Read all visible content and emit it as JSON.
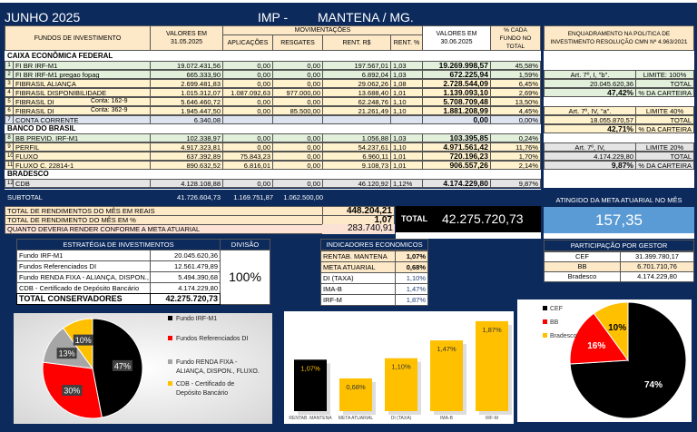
{
  "header": {
    "month": "JUNHO 2025",
    "imp": "IMP -",
    "city": "MANTENA / MG."
  },
  "columns": {
    "funds": "FUNDOS DE INVESTIMENTO",
    "val_prev": "VALORES EM 31.05.2025",
    "movements": "MOVIMENTAÇÕES",
    "applications": "APLICAÇÕES",
    "redemptions": "RESGATES",
    "rent_rs": "RENT. R$",
    "rent_pct": "RENT. %",
    "val_curr": "VALORES EM 30.06.2025",
    "pct_total": "% CADA FUNDO NO TOTAL",
    "policy": "ENQUADRAMENTO NA POLITICA DE INVESTIMENTO RESOLUÇÃO CMN Nº 4.963/2021"
  },
  "sections": {
    "cef": "CAIXA ECONÔMICA FEDERAL",
    "bb": "BANCO DO BRASIL",
    "bradesco": "BRADESCO"
  },
  "rows": [
    {
      "n": "1",
      "name": "FI BR IRF-M1",
      "conta": "",
      "prev": "19.072.431,56",
      "apl": "0,00",
      "res": "0,00",
      "rrs": "197.567,01",
      "rp": "1,03",
      "curr": "19.269.998,57",
      "pct": "45,58%"
    },
    {
      "n": "2",
      "name": "FI BR IRF-M1 pregao fopag",
      "conta": "",
      "prev": "665.333,90",
      "apl": "0,00",
      "res": "0,00",
      "rrs": "6.892,04",
      "rp": "1,03",
      "curr": "672.225,94",
      "pct": "1,59%"
    },
    {
      "n": "3",
      "name": "FIBRASIL ALIANÇA",
      "conta": "",
      "prev": "2.699.481,83",
      "apl": "0,00",
      "res": "0,00",
      "rrs": "29.062,26",
      "rp": "1,08",
      "curr": "2.728.544,09",
      "pct": "6,45%"
    },
    {
      "n": "4",
      "name": "FIBRASIL DISPONIBILIDADE",
      "conta": "",
      "prev": "1.015.312,07",
      "apl": "1.087.092,63",
      "res": "977.000,00",
      "rrs": "13.688,40",
      "rp": "1,01",
      "curr": "1.139.093,10",
      "pct": "2,69%"
    },
    {
      "n": "5",
      "name": "FIBRASIL DI",
      "conta": "Conta: 162-9",
      "prev": "5.646.460,72",
      "apl": "0,00",
      "res": "0,00",
      "rrs": "62.248,76",
      "rp": "1,10",
      "curr": "5.708.709,48",
      "pct": "13,50%"
    },
    {
      "n": "6",
      "name": "FIBRASIL DI",
      "conta": "Conta: 362-9",
      "prev": "1.945.447,50",
      "apl": "0,00",
      "res": "85.500,00",
      "rrs": "21.261,49",
      "rp": "1,10",
      "curr": "1.881.208,99",
      "pct": "4,45%"
    },
    {
      "n": "7",
      "name": "CONTA CORRENTE",
      "conta": "",
      "prev": "6.340,08",
      "apl": "",
      "res": "",
      "rrs": "",
      "rp": "",
      "curr": "0,00",
      "pct": "0,00%"
    },
    {
      "n": "8",
      "name": "BB PREVID. IRF-M1",
      "conta": "",
      "prev": "102.338,97",
      "apl": "0,00",
      "res": "0,00",
      "rrs": "1.056,88",
      "rp": "1,03",
      "curr": "103.395,85",
      "pct": "0,24%"
    },
    {
      "n": "9",
      "name": "PERFIL",
      "conta": "",
      "prev": "4.917.323,81",
      "apl": "0,00",
      "res": "0,00",
      "rrs": "54.237,61",
      "rp": "1,10",
      "curr": "4.971.561,42",
      "pct": "11,76%"
    },
    {
      "n": "10",
      "name": "FLUXO",
      "conta": "",
      "prev": "637.392,89",
      "apl": "75.843,23",
      "res": "0,00",
      "rrs": "6.960,11",
      "rp": "1,01",
      "curr": "720.196,23",
      "pct": "1,70%"
    },
    {
      "n": "11",
      "name": "FLUXO  C. 22814-1",
      "conta": "",
      "prev": "890.632,52",
      "apl": "6.816,01",
      "res": "0,00",
      "rrs": "9.108,73",
      "rp": "1,01",
      "curr": "906.557,26",
      "pct": "2,14%"
    },
    {
      "n": "12",
      "name": "CDB",
      "conta": "",
      "prev": "4.128.108,88",
      "apl": "0,00",
      "res": "0,00",
      "rrs": "46.120,92",
      "rp": "1,12%",
      "curr": "4.174.229,80",
      "pct": "9,87%"
    }
  ],
  "policy": [
    {
      "art": "Art. 7º, I, \"b\".",
      "limit": "LIMITE: 100%",
      "total": "20.045.620,36",
      "total_label": "TOTAL",
      "pct": "47,42%",
      "pct_label": "% DA CARTEIRA"
    },
    {
      "art": "Art. 7º, IV, \"a\".",
      "limit": "LIMITE 40%",
      "total": "18.055.870,57",
      "total_label": "TOTAL",
      "pct": "42,71%",
      "pct_label": "% DA CARTEIRA"
    },
    {
      "art": "Art. 7º, IV,",
      "limit": "LIMITE 20%",
      "total": "4.174.229,80",
      "total_label": "TOTAL",
      "pct": "9,87%",
      "pct_label": "% DA CARTEIRA"
    }
  ],
  "subtotal": {
    "label": "SUBTOTAL",
    "prev": "41.726.604,73",
    "apl": "1.169.751,87",
    "res": "1.062.500,00"
  },
  "totals": {
    "rend_rs_label": "TOTAL DE RENDIMENTOS DO MÊS EM REAIS",
    "rend_rs": "448.204,21",
    "rend_pct_label": "TOTAL DE RENDIMENTO DO MÊS EM %",
    "rend_pct": "1,07",
    "meta_label": "QUANTO DEVERIA RENDER CONFORME A META ATUARIAL",
    "meta": "283.740,91",
    "total_label": "TOTAL",
    "total": "42.275.720,73"
  },
  "meta_reached": {
    "label": "ATINGIDO DA META ATUARIAL NO MÊS",
    "value": "157,35"
  },
  "strategy": {
    "title": "ESTRATÉGIA DE INVESTIMENTOS",
    "division_label": "DIVISÃO",
    "division": "100%",
    "items": [
      {
        "name": "Fundo IRF-M1",
        "value": "20.045.620,36"
      },
      {
        "name": "Fundos Referenciados DI",
        "value": "12.561.479,89"
      },
      {
        "name": "Fundo RENDA FIXA -  ALIANÇA, DISPON., F",
        "value": "5.494.390,68"
      },
      {
        "name": "CDB - Certificado de Depósito Bancário",
        "value": "4.174.229,80"
      }
    ],
    "total_label": "TOTAL CONSERVADORES",
    "total": "42.275.720,73"
  },
  "indicators": {
    "title": "INDICADORES ECONOMICOS",
    "items": [
      {
        "name": "RENTAB.  MANTENA",
        "value": "1,07%"
      },
      {
        "name": "META ATUARIAL",
        "value": "0,68%"
      },
      {
        "name": "DI (TAXA)",
        "value": "1,10%"
      },
      {
        "name": "IMA-B",
        "value": "1,47%"
      },
      {
        "name": "IRF-M",
        "value": "1,87%"
      }
    ]
  },
  "gestor": {
    "title": "PARTICIPAÇÃO POR GESTOR",
    "items": [
      {
        "name": "CEF",
        "value": "31.399.780,17"
      },
      {
        "name": "BB",
        "value": "6.701.710,76"
      },
      {
        "name": "Bradesco",
        "value": "4.174.229,80"
      }
    ]
  },
  "chart_data": [
    {
      "type": "pie",
      "labels": [
        "Fundo IRF-M1",
        "Fundos Referenciados DI",
        "Fundo RENDA FIXA - ALIANÇA, DISPON., FLUXO.",
        "CDB - Certificado de Depósito Bancário"
      ],
      "values": [
        47,
        30,
        13,
        10
      ],
      "data_labels": [
        "47%",
        "30%",
        "13%",
        "10%"
      ],
      "colors": [
        "#000000",
        "#ff0000",
        "#a6a6a6",
        "#ffc000"
      ],
      "legend": "right"
    },
    {
      "type": "bar",
      "categories": [
        "RENTAB.  MANTENA",
        "META ATUARIAL",
        "DI (TAXA)",
        "IMA-B",
        "IRF-M"
      ],
      "values": [
        1.07,
        0.68,
        1.1,
        1.47,
        1.87
      ],
      "data_labels": [
        "1,07%",
        "0,68%",
        "1,10%",
        "1,47%",
        "1,87%"
      ],
      "colors": [
        "#000000",
        "#ffc000",
        "#ffc000",
        "#ffc000",
        "#ffc000"
      ]
    },
    {
      "type": "pie",
      "labels": [
        "CEF",
        "BB",
        "Bradesco"
      ],
      "values": [
        74,
        16,
        10
      ],
      "data_labels": [
        "74%",
        "16%",
        "10%"
      ],
      "colors": [
        "#000000",
        "#ff0000",
        "#ffc000"
      ],
      "legend": "left"
    }
  ]
}
